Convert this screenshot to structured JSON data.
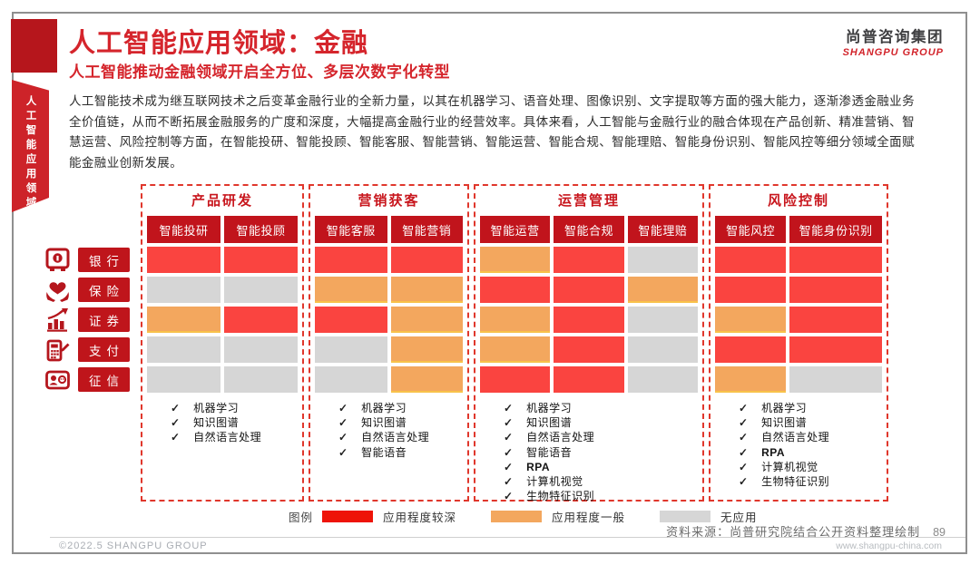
{
  "ribbon": {
    "vertical_label": "人工智能应用领域"
  },
  "logo": {
    "cn": "尚普咨询集团",
    "en": "SHANGPU GROUP"
  },
  "header": {
    "title": "人工智能应用领域：金融",
    "subtitle": "人工智能推动金融领域开启全方位、多层次数字化转型"
  },
  "intro": "人工智能技术成为继互联网技术之后变革金融行业的全新力量，以其在机器学习、语音处理、图像识别、文字提取等方面的强大能力，逐渐渗透金融业务全价值链，从而不断拓展金融服务的广度和深度，大幅提高金融行业的经营效率。具体来看，人工智能与金融行业的融合体现在产品创新、精准营销、智慧运营、风险控制等方面，在智能投研、智能投顾、智能客服、智能营销、智能运营、智能合规、智能理赔、智能身份识别、智能风控等细分领域全面赋能金融业创新发展。",
  "colors": {
    "accent": "#c8161d",
    "deep": "#fa4440",
    "mid": "#f3a75e",
    "none": "#d6d6d6",
    "legend_deep": "#ee1408"
  },
  "check_glyph": "✓",
  "matrix": {
    "groups": [
      {
        "title": "产品研发",
        "columns": [
          "智能投研",
          "智能投顾"
        ],
        "tech": [
          "机器学习",
          "知识图谱",
          "自然语言处理"
        ]
      },
      {
        "title": "营销获客",
        "columns": [
          "智能客服",
          "智能营销"
        ],
        "tech": [
          "机器学习",
          "知识图谱",
          "自然语言处理",
          "智能语音"
        ]
      },
      {
        "title": "运营管理",
        "columns": [
          "智能运营",
          "智能合规",
          "智能理赔"
        ],
        "tech": [
          "机器学习",
          "知识图谱",
          "自然语言处理",
          "智能语音",
          "RPA",
          "计算机视觉",
          "生物特征识别"
        ]
      },
      {
        "title": "风险控制",
        "columns": [
          "智能风控",
          "智能身份识别"
        ],
        "tech": [
          "机器学习",
          "知识图谱",
          "自然语言处理",
          "RPA",
          "计算机视觉",
          "生物特征识别"
        ]
      }
    ],
    "rows": [
      {
        "label": "银行",
        "icon": "safe-icon",
        "cells": [
          "deep",
          "deep",
          "deep",
          "deep",
          "mid",
          "deep",
          "none",
          "deep",
          "deep"
        ]
      },
      {
        "label": "保险",
        "icon": "heart-hands-icon",
        "cells": [
          "none",
          "none",
          "mid",
          "mid",
          "deep",
          "deep",
          "mid",
          "deep",
          "deep"
        ]
      },
      {
        "label": "证券",
        "icon": "chart-up-icon",
        "cells": [
          "mid",
          "deep",
          "deep",
          "mid",
          "mid",
          "deep",
          "none",
          "mid",
          "deep"
        ]
      },
      {
        "label": "支付",
        "icon": "calculator-pen-icon",
        "cells": [
          "none",
          "none",
          "none",
          "mid",
          "mid",
          "deep",
          "none",
          "deep",
          "deep"
        ]
      },
      {
        "label": "征信",
        "icon": "credit-id-icon",
        "cells": [
          "none",
          "none",
          "none",
          "mid",
          "deep",
          "deep",
          "none",
          "mid",
          "none"
        ]
      }
    ]
  },
  "legend": {
    "label": "图例",
    "items": [
      {
        "level": "deep",
        "text": "应用程度较深"
      },
      {
        "level": "mid",
        "text": "应用程度一般"
      },
      {
        "level": "none",
        "text": "无应用"
      }
    ]
  },
  "footer": {
    "copyright": "©2022.5  SHANGPU GROUP",
    "source": "资料来源：尚普研究院结合公开资料整理绘制",
    "page": "89",
    "website": "www.shangpu-china.com"
  }
}
